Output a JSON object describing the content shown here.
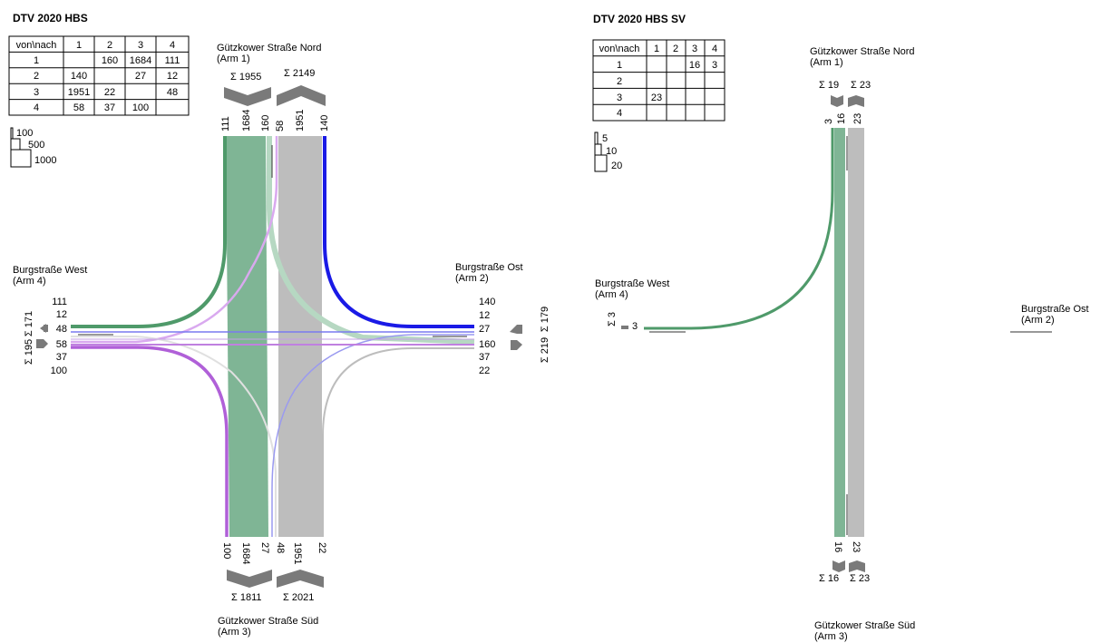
{
  "colors": {
    "arm1": "#7fb595",
    "arm1_dark": "#4f9a6a",
    "arm2": "#1a1ae6",
    "arm2_light": "#9a9af0",
    "arm3": "#bdbdbd",
    "arm3_light": "#d0d0d0",
    "arm4": "#b060d8",
    "arm4_light": "#d9a9ef",
    "sum_arrow": "#7a7a7a"
  },
  "left": {
    "title": "DTV 2020 HBS",
    "matrix": {
      "header": [
        "von\\nach",
        "1",
        "2",
        "3",
        "4"
      ],
      "rows": [
        [
          "1",
          "",
          "160",
          "1684",
          "111"
        ],
        [
          "2",
          "140",
          "",
          "27",
          "12"
        ],
        [
          "3",
          "1951",
          "22",
          "",
          "48"
        ],
        [
          "4",
          "58",
          "37",
          "100",
          ""
        ]
      ]
    },
    "scale": [
      "100",
      "500",
      "1000"
    ],
    "arm1": {
      "name": "Gützkower Straße Nord",
      "arm": "(Arm 1)",
      "sum_in": "Σ 1955",
      "sum_out": "Σ 2149",
      "flows": [
        "111",
        "1684",
        "160",
        "58",
        "1951",
        "140"
      ]
    },
    "arm2": {
      "name": "Burgstraße Ost",
      "arm": "(Arm 2)",
      "sum_in": "Σ 179",
      "sum_out": "Σ 219",
      "flows": [
        "140",
        "12",
        "27",
        "160",
        "37",
        "22"
      ]
    },
    "arm3": {
      "name": "Gützkower Straße Süd",
      "arm": "(Arm 3)",
      "sum_in": "Σ 1811",
      "sum_out": "Σ 2021",
      "flows": [
        "100",
        "1684",
        "27",
        "48",
        "1951",
        "22"
      ]
    },
    "arm4": {
      "name": "Burgstraße West",
      "arm": "(Arm 4)",
      "sum_in": "Σ 171",
      "sum_out": "Σ 195",
      "flows": [
        "111",
        "12",
        "48",
        "58",
        "37",
        "100"
      ]
    }
  },
  "right": {
    "title": "DTV 2020 HBS SV",
    "matrix": {
      "header": [
        "von\\nach",
        "1",
        "2",
        "3",
        "4"
      ],
      "rows": [
        [
          "1",
          "",
          "",
          "16",
          "3"
        ],
        [
          "2",
          "",
          "",
          "",
          ""
        ],
        [
          "3",
          "23",
          "",
          "",
          ""
        ],
        [
          "4",
          "",
          "",
          "",
          ""
        ]
      ]
    },
    "scale": [
      "5",
      "10",
      "20"
    ],
    "arm1": {
      "name": "Gützkower Straße Nord",
      "arm": "(Arm 1)",
      "sum_in": "Σ 19",
      "sum_out": "Σ 23",
      "flows": [
        "3",
        "16",
        "23"
      ]
    },
    "arm2": {
      "name": "Burgstraße Ost",
      "arm": "(Arm 2)"
    },
    "arm3": {
      "name": "Gützkower Straße Süd",
      "arm": "(Arm 3)",
      "sum_in": "Σ 16",
      "sum_out": "Σ 23",
      "flows": [
        "16",
        "23"
      ]
    },
    "arm4": {
      "name": "Burgstraße West",
      "arm": "(Arm 4)",
      "sum": "Σ 3",
      "flows": [
        "3"
      ]
    }
  }
}
